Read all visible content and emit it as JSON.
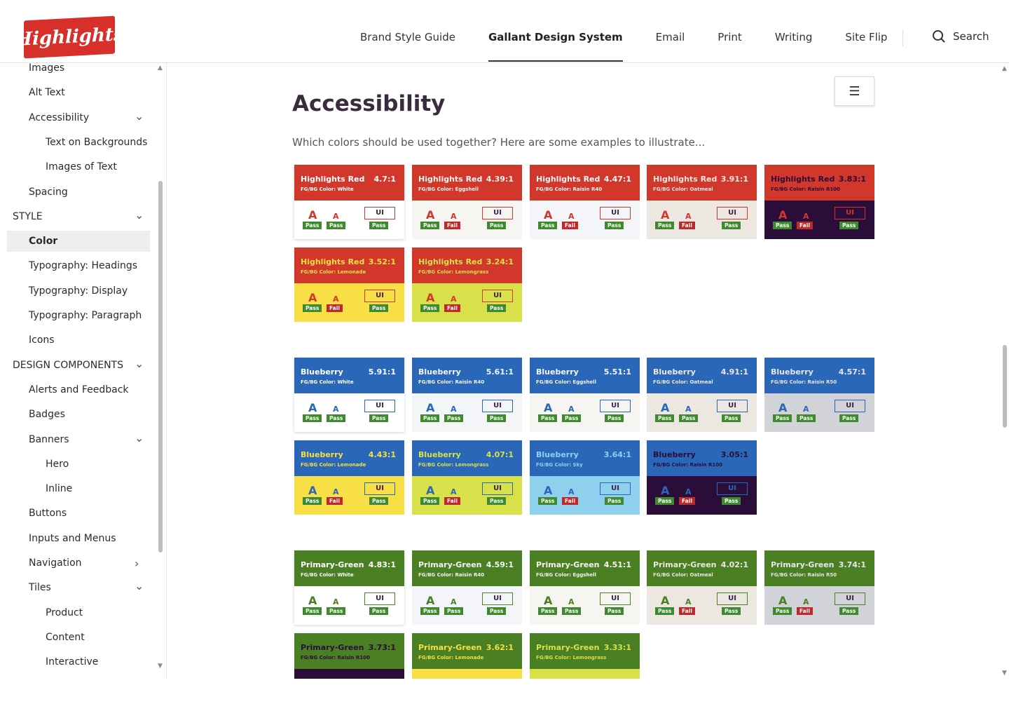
{
  "header": {
    "logo": "Highlights",
    "nav": [
      "Brand Style Guide",
      "Gallant Design System",
      "Email",
      "Print",
      "Writing",
      "Site Flip"
    ],
    "active": "Gallant Design System",
    "search": "Search"
  },
  "sidebar": {
    "items": [
      {
        "label": "Images",
        "indent": 1
      },
      {
        "label": "Alt Text",
        "indent": 1
      },
      {
        "label": "Accessibility",
        "indent": 1,
        "chev": "down"
      },
      {
        "label": "Text on Backgrounds",
        "indent": 2
      },
      {
        "label": "Images of Text",
        "indent": 2
      },
      {
        "label": "Spacing",
        "indent": 1
      },
      {
        "label": "STYLE",
        "indent": 0,
        "chev": "down"
      },
      {
        "label": "Color",
        "indent": 1,
        "selected": true
      },
      {
        "label": "Typography: Headings",
        "indent": 1
      },
      {
        "label": "Typography: Display",
        "indent": 1
      },
      {
        "label": "Typography: Paragraph",
        "indent": 1
      },
      {
        "label": "Icons",
        "indent": 1
      },
      {
        "label": "DESIGN COMPONENTS",
        "indent": 0,
        "chev": "down"
      },
      {
        "label": "Alerts and Feedback",
        "indent": 1
      },
      {
        "label": "Badges",
        "indent": 1
      },
      {
        "label": "Banners",
        "indent": 1,
        "chev": "down"
      },
      {
        "label": "Hero",
        "indent": 2
      },
      {
        "label": "Inline",
        "indent": 2
      },
      {
        "label": "Buttons",
        "indent": 1
      },
      {
        "label": "Inputs and Menus",
        "indent": 1
      },
      {
        "label": "Navigation",
        "indent": 1,
        "chev": "right"
      },
      {
        "label": "Tiles",
        "indent": 1,
        "chev": "down"
      },
      {
        "label": "Product",
        "indent": 2
      },
      {
        "label": "Content",
        "indent": 2
      },
      {
        "label": "Interactive",
        "indent": 2
      }
    ]
  },
  "main": {
    "title": "Accessibility",
    "intro": "Which colors should be used together? Here are some examples to illustrate...",
    "toc_icon": "menu-lines-icon"
  },
  "labels": {
    "big": "A",
    "small": "A",
    "ui": "UI",
    "pass": "Pass",
    "fail": "Fail",
    "prefix": "FG/BG Color: "
  },
  "colors": {
    "Highlights Red": "#d2372b",
    "Blueberry": "#2a67b8",
    "Primary-Green": "#4a7f23",
    "White": "#ffffff",
    "Eggshell": "#f7f5f1",
    "Raisin R40": "#f4f5f9",
    "Oatmeal": "#ece8e1",
    "Raisin R100": "#2b0d3a",
    "Lemonade": "#f7df45",
    "Lemongrass": "#d8e04a",
    "Sky": "#8fd0ee",
    "Raisin R50": "#d2d3d8",
    "pass": "#3f8a2e",
    "fail": "#c0282a"
  },
  "groups": [
    {
      "color": "Highlights Red",
      "cards": [
        {
          "bg": "White",
          "ratio": "4.7:1",
          "res": [
            "Pass",
            "Pass",
            "Pass"
          ]
        },
        {
          "bg": "Eggshell",
          "ratio": "4.39:1",
          "res": [
            "Pass",
            "Fail",
            "Pass"
          ]
        },
        {
          "bg": "Raisin R40",
          "ratio": "4.47:1",
          "res": [
            "Pass",
            "Fail",
            "Pass"
          ]
        },
        {
          "bg": "Oatmeal",
          "ratio": "3.91:1",
          "res": [
            "Pass",
            "Fail",
            "Pass"
          ]
        },
        {
          "bg": "Raisin R100",
          "ratio": "3.83:1",
          "res": [
            "Pass",
            "Fail",
            "Pass"
          ]
        },
        {
          "bg": "Lemonade",
          "ratio": "3.52:1",
          "res": [
            "Pass",
            "Fail",
            "Pass"
          ]
        },
        {
          "bg": "Lemongrass",
          "ratio": "3.24:1",
          "res": [
            "Pass",
            "Fail",
            "Pass"
          ]
        }
      ]
    },
    {
      "color": "Blueberry",
      "cards": [
        {
          "bg": "White",
          "ratio": "5.91:1",
          "res": [
            "Pass",
            "Pass",
            "Pass"
          ]
        },
        {
          "bg": "Raisin R40",
          "ratio": "5.61:1",
          "res": [
            "Pass",
            "Pass",
            "Pass"
          ]
        },
        {
          "bg": "Eggshell",
          "ratio": "5.51:1",
          "res": [
            "Pass",
            "Pass",
            "Pass"
          ]
        },
        {
          "bg": "Oatmeal",
          "ratio": "4.91:1",
          "res": [
            "Pass",
            "Pass",
            "Pass"
          ]
        },
        {
          "bg": "Raisin R50",
          "ratio": "4.57:1",
          "res": [
            "Pass",
            "Pass",
            "Pass"
          ]
        },
        {
          "bg": "Lemonade",
          "ratio": "4.43:1",
          "res": [
            "Pass",
            "Fail",
            "Pass"
          ]
        },
        {
          "bg": "Lemongrass",
          "ratio": "4.07:1",
          "res": [
            "Pass",
            "Fail",
            "Pass"
          ]
        },
        {
          "bg": "Sky",
          "ratio": "3.64:1",
          "res": [
            "Pass",
            "Fail",
            "Pass"
          ]
        },
        {
          "bg": "Raisin R100",
          "ratio": "3.05:1",
          "res": [
            "Pass",
            "Fail",
            "Pass"
          ]
        }
      ]
    },
    {
      "color": "Primary-Green",
      "cards": [
        {
          "bg": "White",
          "ratio": "4.83:1",
          "res": [
            "Pass",
            "Pass",
            "Pass"
          ]
        },
        {
          "bg": "Raisin R40",
          "ratio": "4.59:1",
          "res": [
            "Pass",
            "Pass",
            "Pass"
          ]
        },
        {
          "bg": "Eggshell",
          "ratio": "4.51:1",
          "res": [
            "Pass",
            "Pass",
            "Pass"
          ]
        },
        {
          "bg": "Oatmeal",
          "ratio": "4.02:1",
          "res": [
            "Pass",
            "Fail",
            "Pass"
          ]
        },
        {
          "bg": "Raisin R50",
          "ratio": "3.74:1",
          "res": [
            "Pass",
            "Fail",
            "Pass"
          ]
        },
        {
          "bg": "Raisin R100",
          "ratio": "3.73:1",
          "res": []
        },
        {
          "bg": "Lemonade",
          "ratio": "3.62:1",
          "res": []
        },
        {
          "bg": "Lemongrass",
          "ratio": "3.33:1",
          "res": []
        }
      ]
    }
  ]
}
